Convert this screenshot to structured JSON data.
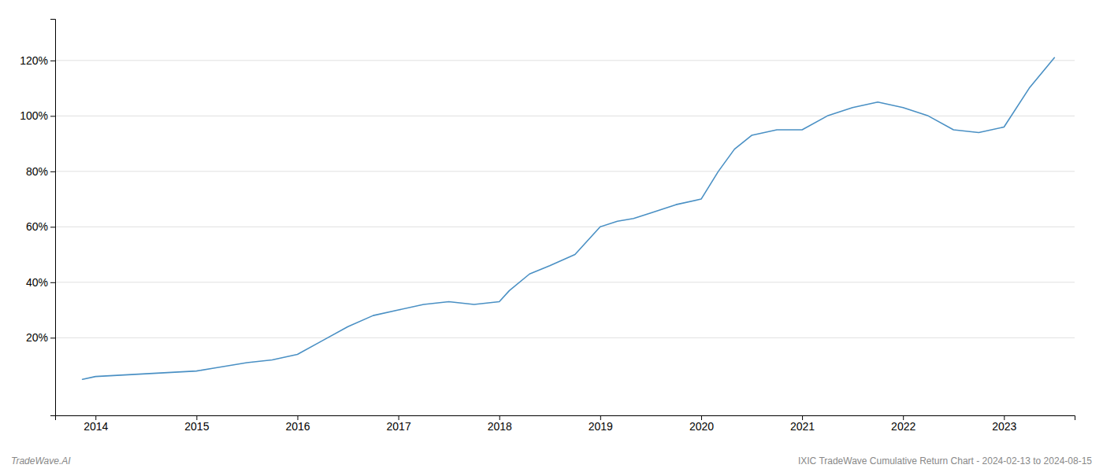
{
  "chart_data": {
    "type": "line",
    "x": [
      2013.87,
      2014.0,
      2014.25,
      2014.5,
      2014.75,
      2015.0,
      2015.17,
      2015.5,
      2015.75,
      2016.0,
      2016.25,
      2016.5,
      2016.75,
      2017.0,
      2017.25,
      2017.5,
      2017.75,
      2018.0,
      2018.1,
      2018.3,
      2018.5,
      2018.75,
      2019.0,
      2019.17,
      2019.33,
      2019.5,
      2019.75,
      2020.0,
      2020.17,
      2020.33,
      2020.5,
      2020.75,
      2021.0,
      2021.25,
      2021.5,
      2021.75,
      2022.0,
      2022.25,
      2022.5,
      2022.75,
      2023.0,
      2023.25,
      2023.5
    ],
    "values": [
      5,
      6,
      6.5,
      7,
      7.5,
      8,
      9,
      11,
      12,
      14,
      19,
      24,
      28,
      30,
      32,
      33,
      32,
      33,
      37,
      43,
      46,
      50,
      60,
      62,
      63,
      65,
      68,
      70,
      80,
      88,
      93,
      95,
      95,
      100,
      103,
      105,
      103,
      100,
      95,
      94,
      96,
      110,
      121
    ],
    "color": "#4a90c4",
    "xlim": [
      2013.6,
      2023.7
    ],
    "xticks": [
      2014,
      2015,
      2016,
      2017,
      2018,
      2019,
      2020,
      2021,
      2022,
      2023
    ],
    "ylim": [
      -8,
      135
    ],
    "yticks": [
      {
        "value": 20,
        "label": "20%"
      },
      {
        "value": 40,
        "label": "40%"
      },
      {
        "value": 60,
        "label": "60%"
      },
      {
        "value": 80,
        "label": "80%"
      },
      {
        "value": 100,
        "label": "100%"
      },
      {
        "value": 120,
        "label": "120%"
      }
    ],
    "grid": true,
    "annotations": [
      "TradeWave.AI",
      "IXIC TradeWave Cumulative Return Chart - 2024-02-13 to 2024-08-15"
    ]
  }
}
